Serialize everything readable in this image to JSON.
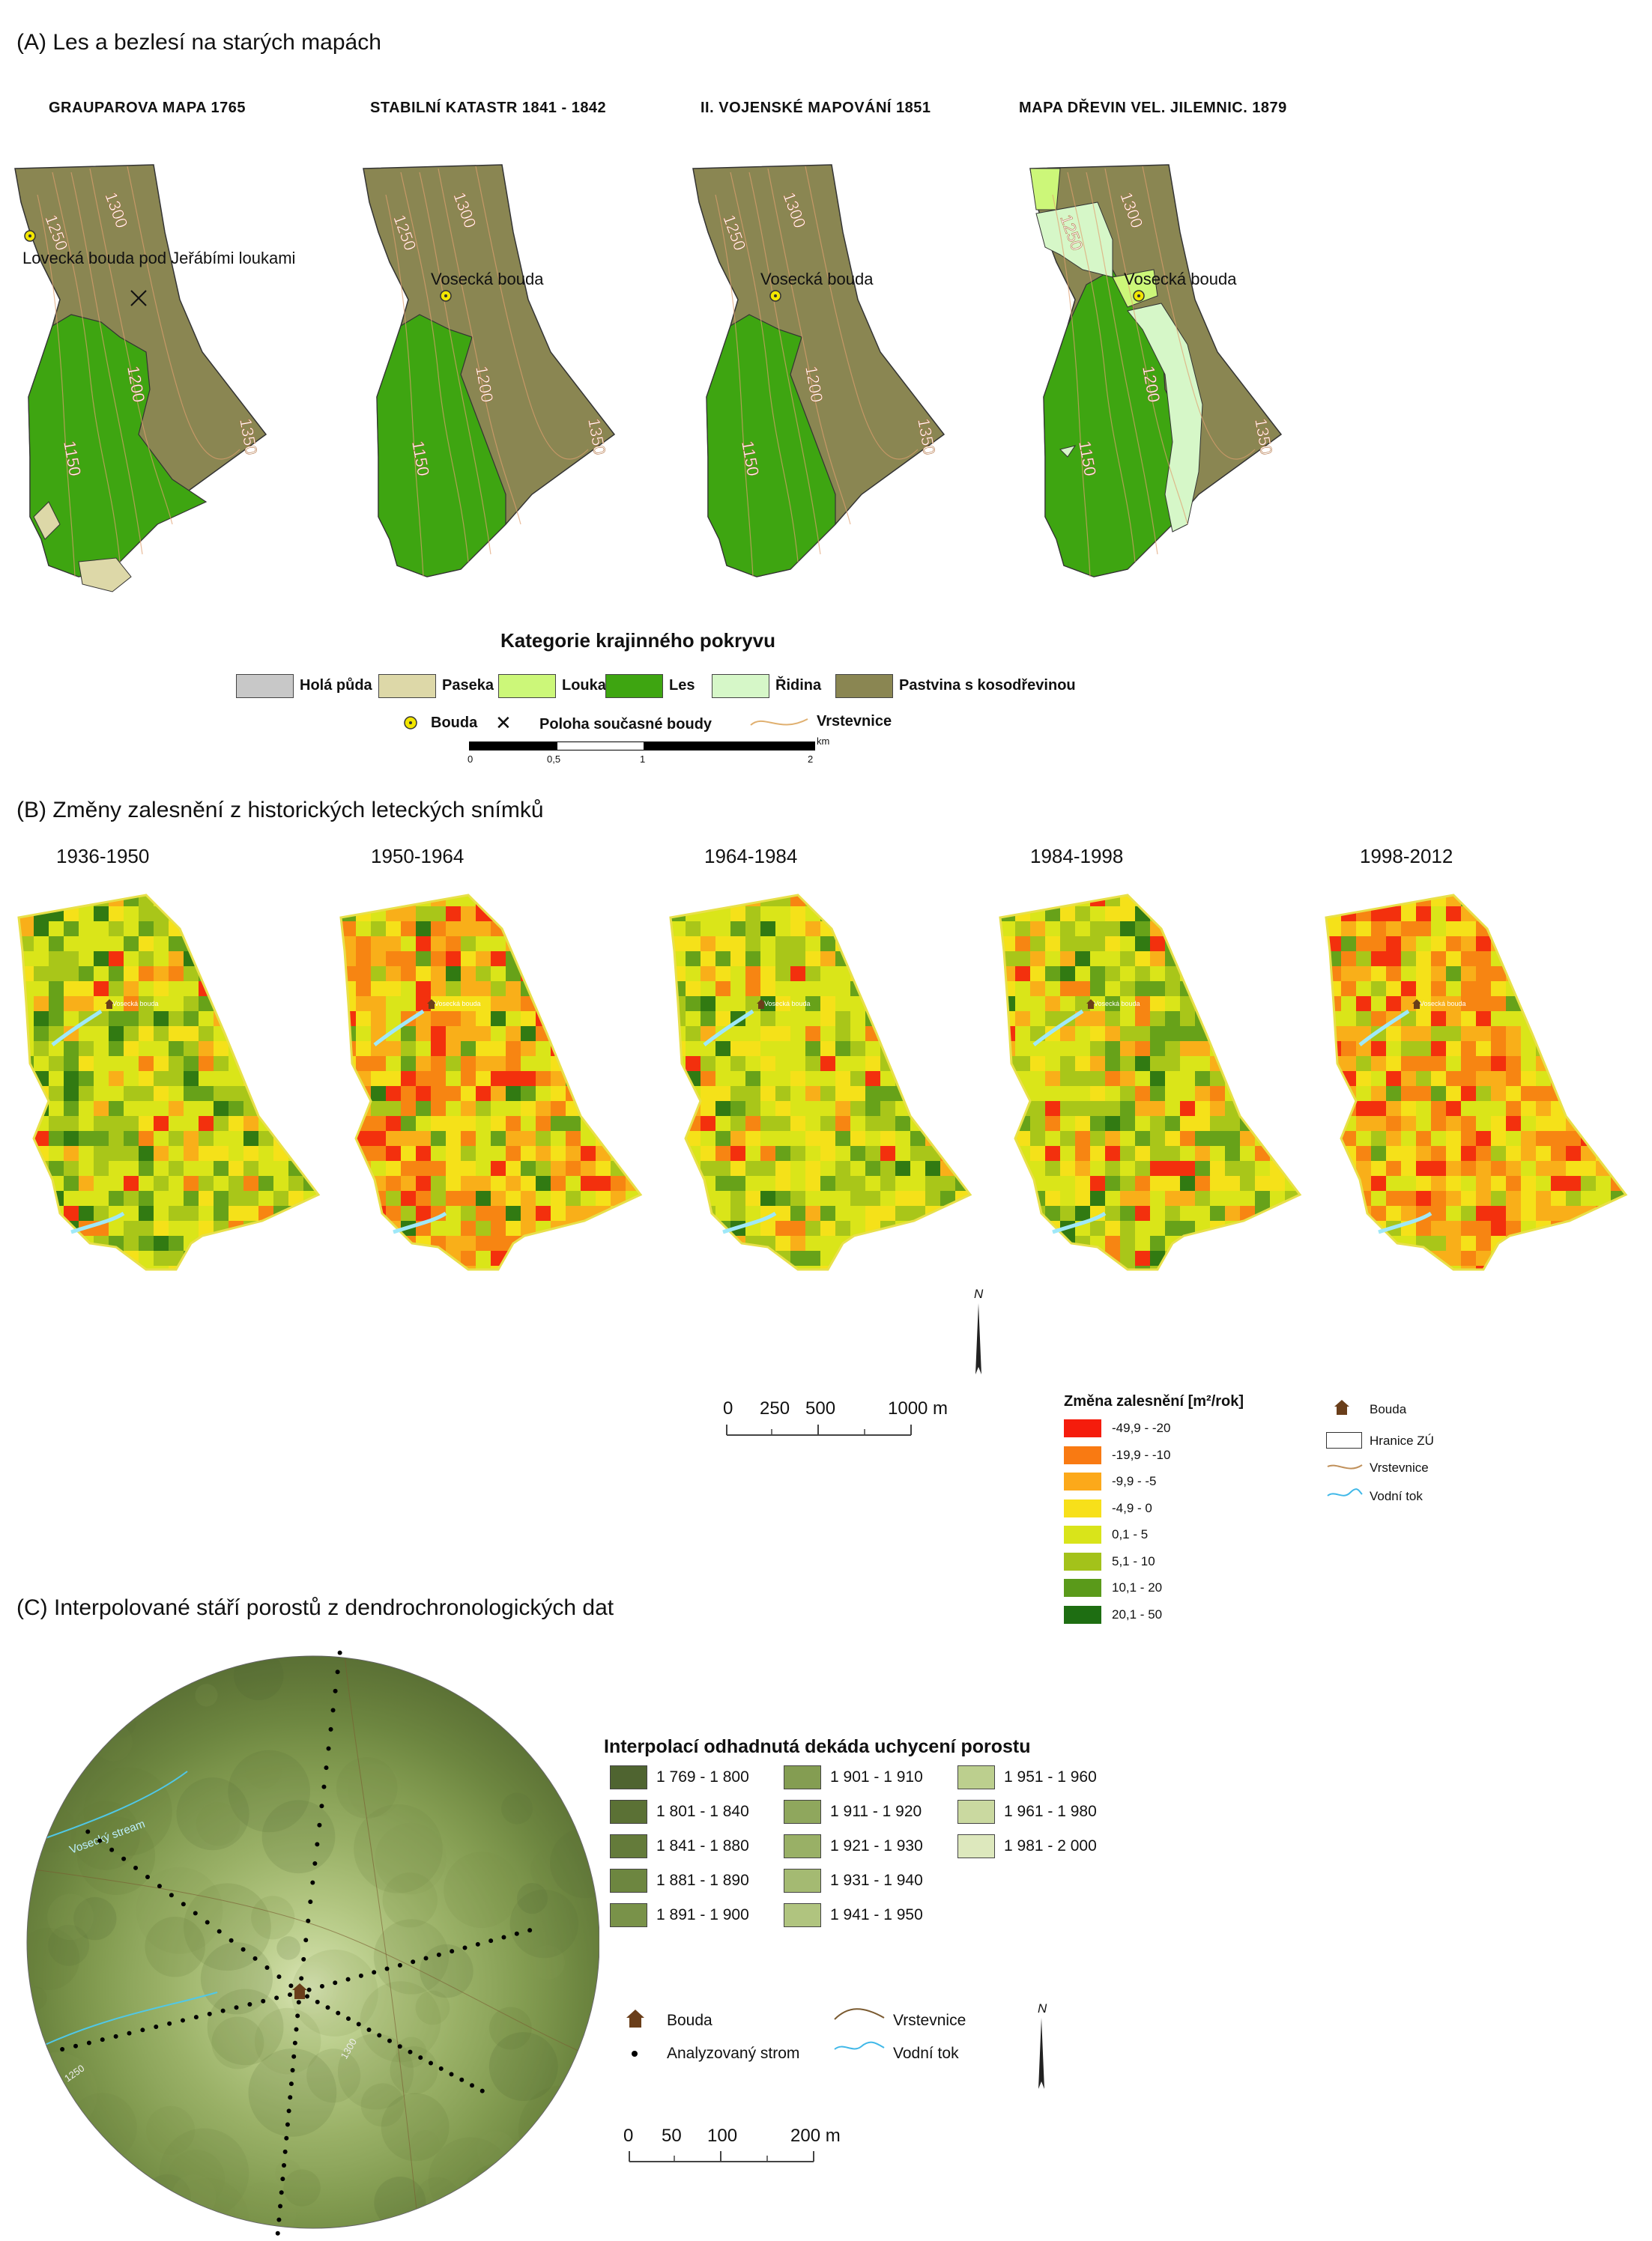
{
  "colors": {
    "forest": "#3ea511",
    "pasture": "#8a8652",
    "meadow": "#ccf779",
    "sparse": "#d6f7c8",
    "clearing": "#ddd8a8",
    "bare": "#c8c8c8",
    "contour": "#e0a070"
  },
  "sectionA": {
    "title": "(A) Les a bezlesí na starých mapách",
    "maps": [
      {
        "title": "GRAUPAROVA MAPA 1765",
        "hut_label": "Lovecká bouda pod Jeřábími loukami",
        "contours": [
          "1300",
          "1250",
          "1200",
          "1150",
          "1350"
        ]
      },
      {
        "title": "STABILNÍ KATASTR 1841 - 1842",
        "hut_label": "Vosecká bouda",
        "contours": [
          "1300",
          "1250",
          "1200",
          "1150",
          "1350"
        ]
      },
      {
        "title": "II. VOJENSKÉ MAPOVÁNÍ 1851",
        "hut_label": "Vosecká bouda",
        "contours": [
          "1300",
          "1250",
          "1200",
          "1150",
          "1350"
        ]
      },
      {
        "title": "MAPA DŘEVIN VEL. JILEMNIC. 1879",
        "hut_label": "Vosecká bouda",
        "contours": [
          "1300",
          "1250",
          "1200",
          "1150",
          "1350"
        ]
      }
    ],
    "legend": {
      "title": "Kategorie krajinného pokryvu",
      "categories": [
        {
          "label": "Holá půda",
          "color": "#c8c8c8"
        },
        {
          "label": "Paseka",
          "color": "#ddd8a8"
        },
        {
          "label": "Louka",
          "color": "#ccf779"
        },
        {
          "label": "Les",
          "color": "#3ea511"
        },
        {
          "label": "Řidina",
          "color": "#d6f7c8"
        },
        {
          "label": "Pastvina s kosodřevinou",
          "color": "#8a8652"
        }
      ],
      "symbols": {
        "hut": "Bouda",
        "position": "Poloha současné boudy",
        "contour": "Vrstevnice"
      },
      "scalebar": {
        "unit": "km",
        "ticks": [
          "0",
          "0,5",
          "1",
          "2"
        ]
      }
    }
  },
  "sectionB": {
    "title": "(B) Změny zalesnění z historických leteckých snímků",
    "periods": [
      "1936-1950",
      "1950-1964",
      "1964-1984",
      "1984-1998",
      "1998-2012"
    ],
    "hut_label": "Vosecká bouda",
    "north": "N",
    "scalebar": {
      "ticks": [
        "0",
        "250",
        "500",
        "1000 m"
      ]
    },
    "legend": {
      "title": "Změna zalesnění [m²/rok]",
      "classes": [
        {
          "label": "-49,9 - -20",
          "color": "#f51c0c"
        },
        {
          "label": "-19,9 - -10",
          "color": "#f97a12"
        },
        {
          "label": "-9,9 - -5",
          "color": "#fca91a"
        },
        {
          "label": "-4,9 - 0",
          "color": "#f7e01a"
        },
        {
          "label": "0,1 - 5",
          "color": "#d9e41a"
        },
        {
          "label": "5,1 - 10",
          "color": "#a3c21a"
        },
        {
          "label": "10,1 - 20",
          "color": "#5a9a1a"
        },
        {
          "label": "20,1 - 50",
          "color": "#1e6e12"
        }
      ],
      "symbols": {
        "hut": "Bouda",
        "boundary": "Hranice ZÚ",
        "contour": "Vrstevnice",
        "stream": "Vodní tok"
      }
    }
  },
  "sectionC": {
    "title": "(C) Interpolované stáří porostů z dendrochronologických dat",
    "legend_title": "Interpolací odhadnutá dekáda uchycení porostu",
    "classes": [
      {
        "label": "1 769 - 1 800",
        "color": "#4f6430"
      },
      {
        "label": "1 801 - 1 840",
        "color": "#5b7135"
      },
      {
        "label": "1 841 - 1 880",
        "color": "#647b3a"
      },
      {
        "label": "1 881 - 1 890",
        "color": "#6d8640"
      },
      {
        "label": "1 891 - 1 900",
        "color": "#799249"
      },
      {
        "label": "1 901 - 1 910",
        "color": "#849d52"
      },
      {
        "label": "1 911 - 1 920",
        "color": "#8fa75d"
      },
      {
        "label": "1 921 - 1 930",
        "color": "#99b066"
      },
      {
        "label": "1 931 - 1 940",
        "color": "#a4ba72"
      },
      {
        "label": "1 941 - 1 950",
        "color": "#b0c47f"
      },
      {
        "label": "1 951 - 1 960",
        "color": "#bccf8e"
      },
      {
        "label": "1 961 - 1 980",
        "color": "#cad9a0"
      },
      {
        "label": "1 981 - 2 000",
        "color": "#dde8bd"
      }
    ],
    "symbols": {
      "hut": "Bouda",
      "tree": "Analyzovaný strom",
      "contour": "Vrstevnice",
      "stream": "Vodní tok"
    },
    "stream_label": "Vosecký stream",
    "contour_labels": [
      "1250",
      "1300"
    ],
    "north": "N",
    "scalebar": {
      "ticks": [
        "0",
        "50",
        "100",
        "200 m"
      ]
    }
  }
}
